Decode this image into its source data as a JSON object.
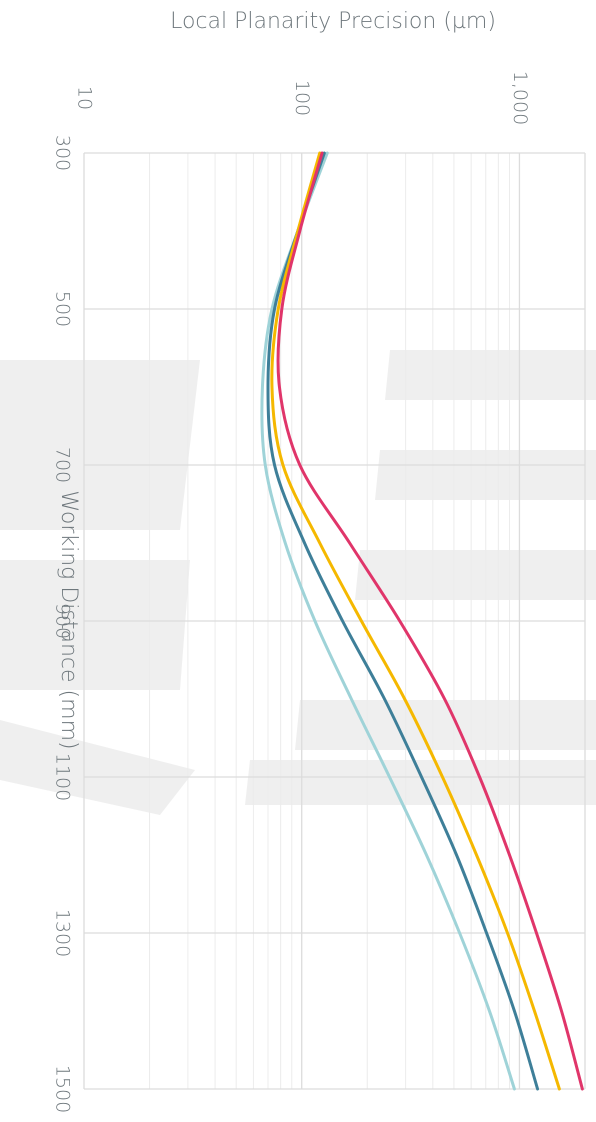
{
  "chart_data": {
    "type": "line",
    "title": "Local Planarity Precision (µm)",
    "x_label": "Working Distance (mm)",
    "x": [
      300,
      400,
      500,
      600,
      700,
      800,
      900,
      1000,
      1100,
      1200,
      1300,
      1400,
      1500
    ],
    "series": [
      {
        "color": "#9fd3d8",
        "values": [
          131,
          96,
          73,
          66,
          68,
          84,
          115,
          169,
          253,
          374,
          531,
          728,
          948
        ]
      },
      {
        "color": "#3e7f99",
        "values": [
          127,
          96,
          75,
          70,
          75,
          103,
          154,
          240,
          355,
          514,
          706,
          948,
          1211
        ]
      },
      {
        "color": "#f5b800",
        "values": [
          121,
          96,
          78,
          73,
          82,
          121,
          188,
          297,
          443,
          635,
          881,
          1172,
          1525
        ]
      },
      {
        "color": "#e0356a",
        "values": [
          124,
          98,
          81,
          79,
          98,
          166,
          282,
          453,
          656,
          900,
          1197,
          1560,
          1945
        ]
      }
    ],
    "xlim": [
      300,
      1500
    ],
    "xticks": [
      300,
      500,
      700,
      900,
      1100,
      1300,
      1500
    ],
    "ylim": [
      10,
      2000
    ],
    "yticks": [
      10,
      100,
      {
        "value": 1000,
        "label": "1,000"
      }
    ],
    "yminor": [
      20,
      30,
      40,
      50,
      60,
      70,
      80,
      90,
      200,
      300,
      400,
      500,
      600,
      700,
      800,
      900
    ],
    "log_scale": true,
    "grid": true
  }
}
